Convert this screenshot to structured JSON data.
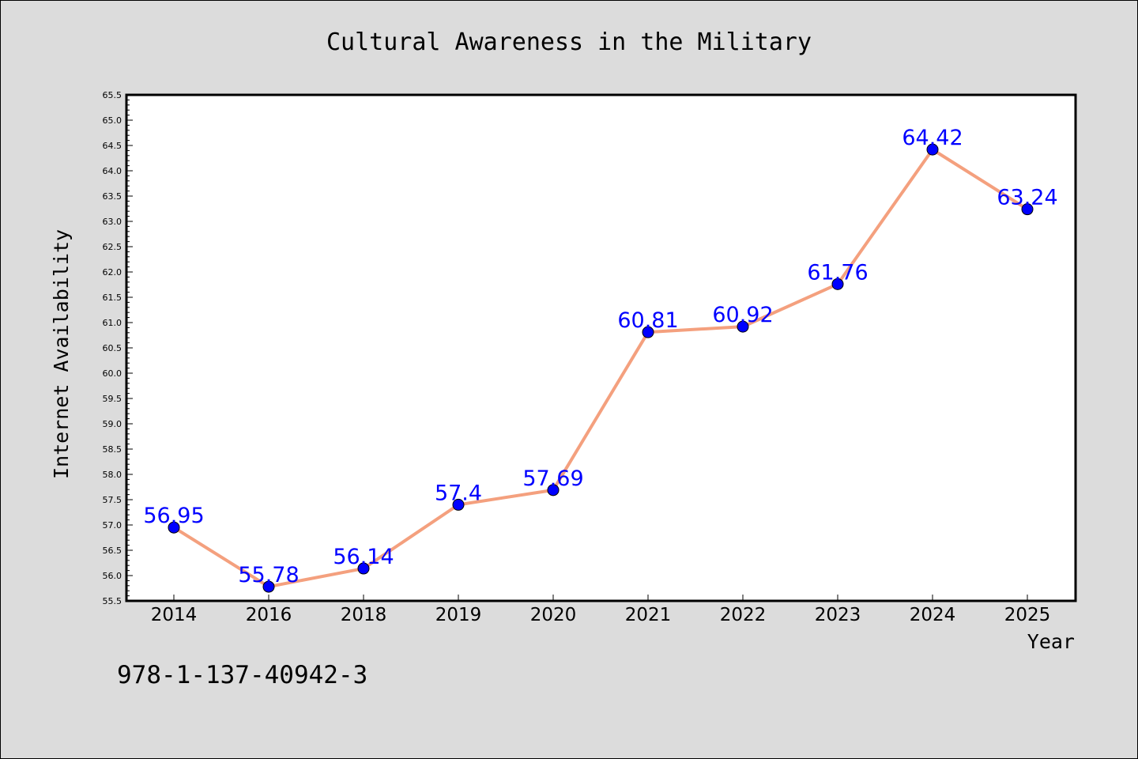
{
  "footer_code": "978-1-137-40942-3",
  "chart_data": {
    "type": "line",
    "title": "Cultural Awareness in the Military",
    "xlabel": "Year",
    "ylabel": "Internet Availability",
    "categories": [
      "2014",
      "2016",
      "2018",
      "2019",
      "2020",
      "2021",
      "2022",
      "2023",
      "2024",
      "2025"
    ],
    "values": [
      56.95,
      55.78,
      56.14,
      57.4,
      57.69,
      60.81,
      60.92,
      61.76,
      64.42,
      63.24
    ],
    "data_labels": [
      "56.95",
      "55.78",
      "56.14",
      "57.4",
      "57.69",
      "60.81",
      "60.92",
      "61.76",
      "64.42",
      "63.24"
    ],
    "ylim": [
      55.5,
      65.5
    ],
    "y_major_step": 0.5,
    "y_tick_labels": [
      "55.5",
      "56.0",
      "56.5",
      "57.0",
      "57.5",
      "58.0",
      "58.5",
      "59.0",
      "59.5",
      "60.0",
      "60.5",
      "61.0",
      "61.5",
      "62.0",
      "62.5",
      "63.0",
      "63.5",
      "64.0",
      "64.5",
      "65.0",
      "65.5"
    ],
    "grid": false,
    "legend": "none",
    "colors": {
      "line": "#f4a07e",
      "marker": "#0000ff",
      "data_label": "#0000ff",
      "background": "#dcdcdc",
      "plot_area": "#ffffff"
    }
  }
}
